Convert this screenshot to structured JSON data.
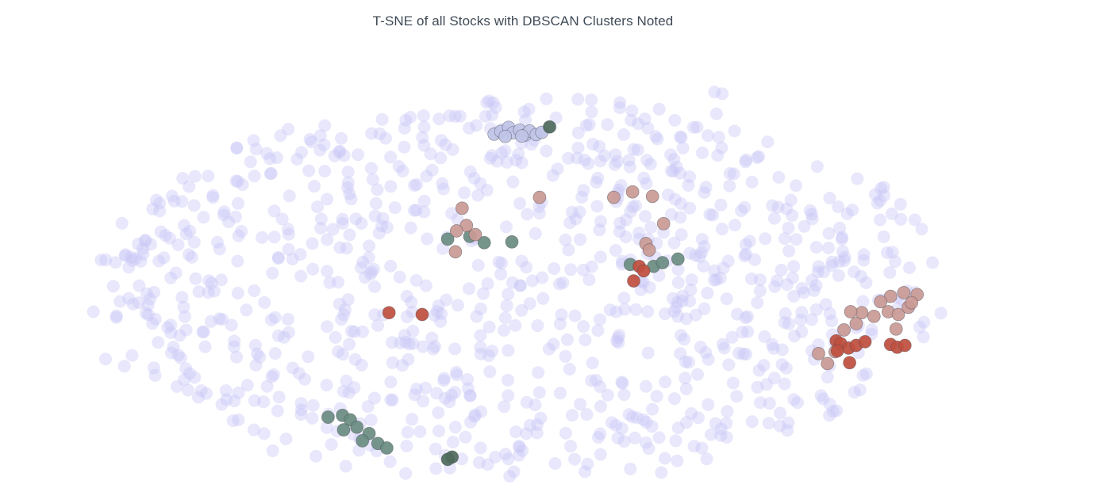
{
  "chart_data": {
    "type": "scatter",
    "title": "T-SNE of all Stocks with DBSCAN Clusters Noted",
    "xlabel": "",
    "ylabel": "",
    "grid": false,
    "legend": "none",
    "colors": {
      "background": "#c9c6f6",
      "cluster_red": "#c0503f",
      "cluster_pink": "#c99a94",
      "cluster_teal": "#6a8d82",
      "cluster_dark_green": "#4f6b5b",
      "cluster_periwinkle": "#c0c4e6"
    },
    "series": [
      {
        "color": "background",
        "random_fill": {
          "count": 820,
          "x_range": [
            -43,
            36
          ],
          "y_range": [
            -21,
            22
          ],
          "seed": 7
        },
        "points": [
          [
            -41.2,
            -7.8
          ],
          [
            -39.5,
            -8.6
          ],
          [
            -38.8,
            -7.4
          ],
          [
            -37.6,
            5.3
          ],
          [
            -36.2,
            6.2
          ],
          [
            -35.4,
            5.5
          ],
          [
            -34.1,
            6.9
          ],
          [
            -33.2,
            9.1
          ],
          [
            -31.5,
            10.2
          ],
          [
            -30.9,
            4.3
          ],
          [
            -29.4,
            11.8
          ],
          [
            -28.1,
            13.9
          ],
          [
            -27.6,
            15.3
          ],
          [
            -26.3,
            12.6
          ],
          [
            -25.4,
            16.8
          ],
          [
            -24.7,
            17.5
          ],
          [
            -23.9,
            14.2
          ],
          [
            -22.6,
            16.1
          ],
          [
            -21.4,
            17.9
          ],
          [
            -20.1,
            15.0
          ],
          [
            -19.3,
            12.8
          ],
          [
            -18.4,
            14.7
          ],
          [
            -17.2,
            13.2
          ],
          [
            -15.9,
            16.5
          ],
          [
            -14.2,
            17.6
          ],
          [
            -13.1,
            11.4
          ],
          [
            -12.4,
            9.6
          ],
          [
            -11.7,
            13.0
          ],
          [
            -10.5,
            15.8
          ],
          [
            -9.6,
            18.9
          ],
          [
            -8.8,
            10.5
          ],
          [
            -7.9,
            12.1
          ],
          [
            -6.3,
            14.6
          ],
          [
            -5.8,
            17.2
          ],
          [
            -4.4,
            11.7
          ],
          [
            -3.6,
            13.8
          ],
          [
            -2.5,
            16.3
          ],
          [
            -1.4,
            15.1
          ],
          [
            -0.8,
            12.4
          ],
          [
            0.6,
            14.3
          ],
          [
            1.5,
            17.1
          ],
          [
            2.7,
            19.4
          ],
          [
            3.4,
            15.6
          ],
          [
            4.8,
            13.6
          ],
          [
            5.6,
            16.9
          ],
          [
            6.9,
            18.1
          ],
          [
            7.7,
            14.1
          ],
          [
            8.8,
            19.7
          ],
          [
            9.9,
            12.9
          ],
          [
            10.8,
            16.6
          ],
          [
            11.9,
            17.7
          ],
          [
            12.7,
            14.9
          ],
          [
            13.8,
            21.6
          ],
          [
            14.5,
            21.4
          ],
          [
            15.6,
            17.3
          ],
          [
            16.6,
            13.9
          ],
          [
            17.8,
            14.5
          ],
          [
            18.6,
            16.1
          ],
          [
            19.6,
            12.2
          ],
          [
            20.7,
            9.7
          ],
          [
            21.9,
            6.8
          ],
          [
            23.0,
            4.5
          ],
          [
            24.4,
            2.5
          ],
          [
            25.3,
            5.4
          ],
          [
            26.4,
            1.8
          ],
          [
            27.5,
            0.6
          ],
          [
            28.6,
            -1.3
          ],
          [
            29.4,
            3.9
          ],
          [
            -40.5,
            0.2
          ],
          [
            -38.2,
            -1.6
          ],
          [
            -36.7,
            -3.4
          ],
          [
            -34.5,
            -5.2
          ],
          [
            -33.6,
            -9.4
          ],
          [
            -32.1,
            -11.6
          ],
          [
            -30.7,
            -12.8
          ],
          [
            -29.2,
            -14.5
          ],
          [
            -27.8,
            -15.6
          ],
          [
            -26.1,
            -17.9
          ],
          [
            -24.9,
            -16.6
          ],
          [
            -23.5,
            -13.4
          ],
          [
            -22.2,
            -18.5
          ],
          [
            -20.8,
            -17.2
          ],
          [
            -19.5,
            -19.6
          ],
          [
            -18.2,
            -14.9
          ],
          [
            -16.9,
            -12.1
          ],
          [
            -15.5,
            -19.1
          ],
          [
            -14.1,
            -20.4
          ],
          [
            -12.8,
            -15.8
          ],
          [
            -11.4,
            -17.7
          ],
          [
            -10.1,
            -19.8
          ],
          [
            -8.7,
            -16.4
          ],
          [
            -7.3,
            -13.6
          ],
          [
            -6.0,
            -18.6
          ],
          [
            -4.7,
            -20.7
          ],
          [
            -3.2,
            -16.0
          ],
          [
            -1.9,
            -14.3
          ],
          [
            -0.6,
            -19.3
          ],
          [
            0.8,
            -17.4
          ],
          [
            2.1,
            -20.2
          ],
          [
            3.5,
            -18.3
          ],
          [
            4.9,
            -15.1
          ],
          [
            6.2,
            -19.9
          ],
          [
            7.6,
            -17.0
          ],
          [
            9.0,
            -20.3
          ],
          [
            10.3,
            -16.8
          ],
          [
            11.7,
            -13.8
          ],
          [
            13.1,
            -18.8
          ],
          [
            14.4,
            -15.5
          ],
          [
            15.8,
            -11.9
          ],
          [
            17.2,
            -14.7
          ],
          [
            18.5,
            -10.6
          ],
          [
            19.9,
            -8.4
          ],
          [
            21.3,
            -12.6
          ],
          [
            22.6,
            -6.9
          ],
          [
            24.0,
            -9.8
          ],
          [
            25.4,
            -4.6
          ],
          [
            26.8,
            -7.1
          ],
          [
            -42.3,
            -2.6
          ],
          [
            -41.6,
            3.1
          ],
          [
            -39.1,
            2.3
          ]
        ]
      },
      {
        "color": "cluster_periwinkle",
        "points": [
          [
            -6.1,
            16.95
          ],
          [
            -5.5,
            17.25
          ],
          [
            -4.8,
            17.7
          ],
          [
            -4.4,
            17.1
          ],
          [
            -3.8,
            17.4
          ],
          [
            -3.3,
            16.85
          ],
          [
            -2.9,
            17.3
          ],
          [
            -2.3,
            16.9
          ],
          [
            -1.8,
            17.15
          ],
          [
            -5.1,
            16.7
          ],
          [
            -3.6,
            16.75
          ]
        ]
      },
      {
        "color": "cluster_dark_green",
        "points": [
          [
            -1.1,
            17.75
          ],
          [
            -9.9,
            -18.6
          ],
          [
            -10.3,
            -18.85
          ]
        ]
      },
      {
        "color": "cluster_teal",
        "points": [
          [
            -10.3,
            5.4
          ],
          [
            -8.3,
            5.7
          ],
          [
            -7.0,
            5.0
          ],
          [
            -4.5,
            5.1
          ],
          [
            6.2,
            2.6
          ],
          [
            8.3,
            2.4
          ],
          [
            9.1,
            2.8
          ],
          [
            10.5,
            3.2
          ],
          [
            -21.1,
            -14.2
          ],
          [
            -19.8,
            -14.0
          ],
          [
            -19.1,
            -14.5
          ],
          [
            -18.5,
            -15.3
          ],
          [
            -17.4,
            -16.0
          ],
          [
            -18.0,
            -16.8
          ],
          [
            -16.6,
            -17.1
          ],
          [
            -15.8,
            -17.6
          ],
          [
            -19.7,
            -15.6
          ]
        ]
      },
      {
        "color": "cluster_pink",
        "points": [
          [
            -2.0,
            10.0
          ],
          [
            4.7,
            10.0
          ],
          [
            6.4,
            10.6
          ],
          [
            8.2,
            10.1
          ],
          [
            -9.0,
            8.8
          ],
          [
            -8.6,
            6.9
          ],
          [
            -9.5,
            6.3
          ],
          [
            -7.8,
            5.9
          ],
          [
            -9.6,
            4.0
          ],
          [
            9.2,
            7.1
          ],
          [
            7.6,
            4.9
          ],
          [
            7.9,
            4.2
          ],
          [
            23.2,
            -7.2
          ],
          [
            24.7,
            -7.0
          ],
          [
            24.0,
            -8.3
          ],
          [
            25.5,
            -4.6
          ],
          [
            26.6,
            -3.9
          ],
          [
            28.2,
            -3.1
          ],
          [
            29.5,
            -2.6
          ],
          [
            30.4,
            -2.9
          ],
          [
            31.3,
            -2.1
          ],
          [
            29.7,
            -0.9
          ],
          [
            30.9,
            -0.5
          ],
          [
            32.1,
            -0.7
          ],
          [
            31.6,
            -1.6
          ],
          [
            28.8,
            -1.5
          ],
          [
            27.1,
            -2.7
          ],
          [
            26.1,
            -2.6
          ],
          [
            30.2,
            -4.5
          ]
        ]
      },
      {
        "color": "cluster_red",
        "points": [
          [
            7.0,
            2.4
          ],
          [
            7.4,
            1.9
          ],
          [
            6.5,
            0.8
          ],
          [
            -15.6,
            -2.7
          ],
          [
            -12.6,
            -2.9
          ],
          [
            24.8,
            -5.8
          ],
          [
            25.2,
            -6.1
          ],
          [
            25.9,
            -6.6
          ],
          [
            26.6,
            -6.3
          ],
          [
            27.4,
            -5.9
          ],
          [
            29.7,
            -6.2
          ],
          [
            30.3,
            -6.5
          ],
          [
            31.0,
            -6.3
          ],
          [
            24.9,
            -6.9
          ],
          [
            26.0,
            -8.2
          ]
        ]
      }
    ]
  }
}
